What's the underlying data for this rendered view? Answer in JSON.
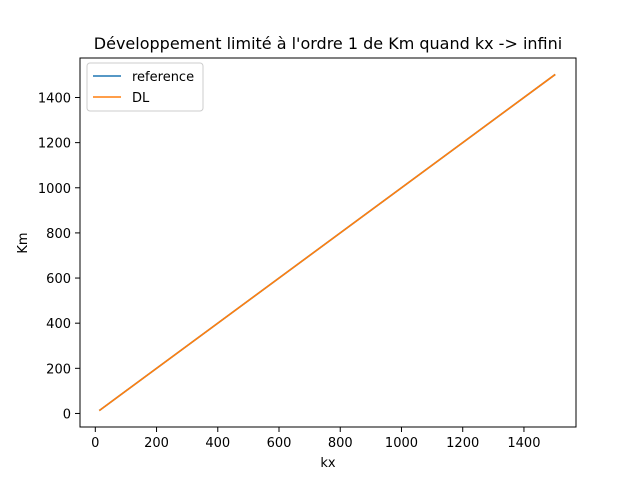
{
  "chart_data": {
    "type": "line",
    "title": "Développement limité à l'ordre 1 de Km quand kx -> infini",
    "xlabel": "kx",
    "ylabel": "Km",
    "xlim": [
      -50,
      1570
    ],
    "ylim": [
      -60,
      1575
    ],
    "xticks": [
      0,
      200,
      400,
      600,
      800,
      1000,
      1200,
      1400
    ],
    "yticks": [
      0,
      200,
      400,
      600,
      800,
      1000,
      1200,
      1400
    ],
    "grid": false,
    "legend_position": "upper-left",
    "series": [
      {
        "name": "reference",
        "color": "#1f77b4",
        "x": [
          15,
          1500
        ],
        "y": [
          15,
          1500
        ]
      },
      {
        "name": "DL",
        "color": "#ff7f0e",
        "x": [
          15,
          1500
        ],
        "y": [
          15,
          1500
        ]
      }
    ]
  }
}
